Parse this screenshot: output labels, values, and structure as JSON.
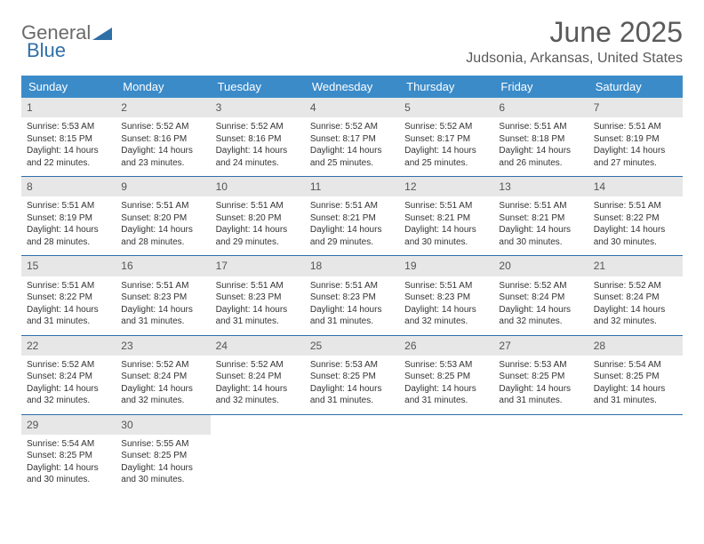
{
  "logo": {
    "text1": "General",
    "text2": "Blue"
  },
  "title": "June 2025",
  "location": "Judsonia, Arkansas, United States",
  "colors": {
    "header_bg": "#3b8bc9",
    "header_text": "#ffffff",
    "week_border": "#2f6fa8",
    "daynum_bg": "#e7e7e7",
    "text": "#333333",
    "logo_gray": "#6a6a6a",
    "logo_blue": "#2f6fa8"
  },
  "weekdays": [
    "Sunday",
    "Monday",
    "Tuesday",
    "Wednesday",
    "Thursday",
    "Friday",
    "Saturday"
  ],
  "weeks": [
    [
      {
        "n": "1",
        "sr": "5:53 AM",
        "ss": "8:15 PM",
        "dl1": "14 hours",
        "dl2": "22 minutes."
      },
      {
        "n": "2",
        "sr": "5:52 AM",
        "ss": "8:16 PM",
        "dl1": "14 hours",
        "dl2": "23 minutes."
      },
      {
        "n": "3",
        "sr": "5:52 AM",
        "ss": "8:16 PM",
        "dl1": "14 hours",
        "dl2": "24 minutes."
      },
      {
        "n": "4",
        "sr": "5:52 AM",
        "ss": "8:17 PM",
        "dl1": "14 hours",
        "dl2": "25 minutes."
      },
      {
        "n": "5",
        "sr": "5:52 AM",
        "ss": "8:17 PM",
        "dl1": "14 hours",
        "dl2": "25 minutes."
      },
      {
        "n": "6",
        "sr": "5:51 AM",
        "ss": "8:18 PM",
        "dl1": "14 hours",
        "dl2": "26 minutes."
      },
      {
        "n": "7",
        "sr": "5:51 AM",
        "ss": "8:19 PM",
        "dl1": "14 hours",
        "dl2": "27 minutes."
      }
    ],
    [
      {
        "n": "8",
        "sr": "5:51 AM",
        "ss": "8:19 PM",
        "dl1": "14 hours",
        "dl2": "28 minutes."
      },
      {
        "n": "9",
        "sr": "5:51 AM",
        "ss": "8:20 PM",
        "dl1": "14 hours",
        "dl2": "28 minutes."
      },
      {
        "n": "10",
        "sr": "5:51 AM",
        "ss": "8:20 PM",
        "dl1": "14 hours",
        "dl2": "29 minutes."
      },
      {
        "n": "11",
        "sr": "5:51 AM",
        "ss": "8:21 PM",
        "dl1": "14 hours",
        "dl2": "29 minutes."
      },
      {
        "n": "12",
        "sr": "5:51 AM",
        "ss": "8:21 PM",
        "dl1": "14 hours",
        "dl2": "30 minutes."
      },
      {
        "n": "13",
        "sr": "5:51 AM",
        "ss": "8:21 PM",
        "dl1": "14 hours",
        "dl2": "30 minutes."
      },
      {
        "n": "14",
        "sr": "5:51 AM",
        "ss": "8:22 PM",
        "dl1": "14 hours",
        "dl2": "30 minutes."
      }
    ],
    [
      {
        "n": "15",
        "sr": "5:51 AM",
        "ss": "8:22 PM",
        "dl1": "14 hours",
        "dl2": "31 minutes."
      },
      {
        "n": "16",
        "sr": "5:51 AM",
        "ss": "8:23 PM",
        "dl1": "14 hours",
        "dl2": "31 minutes."
      },
      {
        "n": "17",
        "sr": "5:51 AM",
        "ss": "8:23 PM",
        "dl1": "14 hours",
        "dl2": "31 minutes."
      },
      {
        "n": "18",
        "sr": "5:51 AM",
        "ss": "8:23 PM",
        "dl1": "14 hours",
        "dl2": "31 minutes."
      },
      {
        "n": "19",
        "sr": "5:51 AM",
        "ss": "8:23 PM",
        "dl1": "14 hours",
        "dl2": "32 minutes."
      },
      {
        "n": "20",
        "sr": "5:52 AM",
        "ss": "8:24 PM",
        "dl1": "14 hours",
        "dl2": "32 minutes."
      },
      {
        "n": "21",
        "sr": "5:52 AM",
        "ss": "8:24 PM",
        "dl1": "14 hours",
        "dl2": "32 minutes."
      }
    ],
    [
      {
        "n": "22",
        "sr": "5:52 AM",
        "ss": "8:24 PM",
        "dl1": "14 hours",
        "dl2": "32 minutes."
      },
      {
        "n": "23",
        "sr": "5:52 AM",
        "ss": "8:24 PM",
        "dl1": "14 hours",
        "dl2": "32 minutes."
      },
      {
        "n": "24",
        "sr": "5:52 AM",
        "ss": "8:24 PM",
        "dl1": "14 hours",
        "dl2": "32 minutes."
      },
      {
        "n": "25",
        "sr": "5:53 AM",
        "ss": "8:25 PM",
        "dl1": "14 hours",
        "dl2": "31 minutes."
      },
      {
        "n": "26",
        "sr": "5:53 AM",
        "ss": "8:25 PM",
        "dl1": "14 hours",
        "dl2": "31 minutes."
      },
      {
        "n": "27",
        "sr": "5:53 AM",
        "ss": "8:25 PM",
        "dl1": "14 hours",
        "dl2": "31 minutes."
      },
      {
        "n": "28",
        "sr": "5:54 AM",
        "ss": "8:25 PM",
        "dl1": "14 hours",
        "dl2": "31 minutes."
      }
    ],
    [
      {
        "n": "29",
        "sr": "5:54 AM",
        "ss": "8:25 PM",
        "dl1": "14 hours",
        "dl2": "30 minutes."
      },
      {
        "n": "30",
        "sr": "5:55 AM",
        "ss": "8:25 PM",
        "dl1": "14 hours",
        "dl2": "30 minutes."
      },
      null,
      null,
      null,
      null,
      null
    ]
  ],
  "labels": {
    "sunrise": "Sunrise:",
    "sunset": "Sunset:",
    "daylight": "Daylight:",
    "and": "and"
  }
}
